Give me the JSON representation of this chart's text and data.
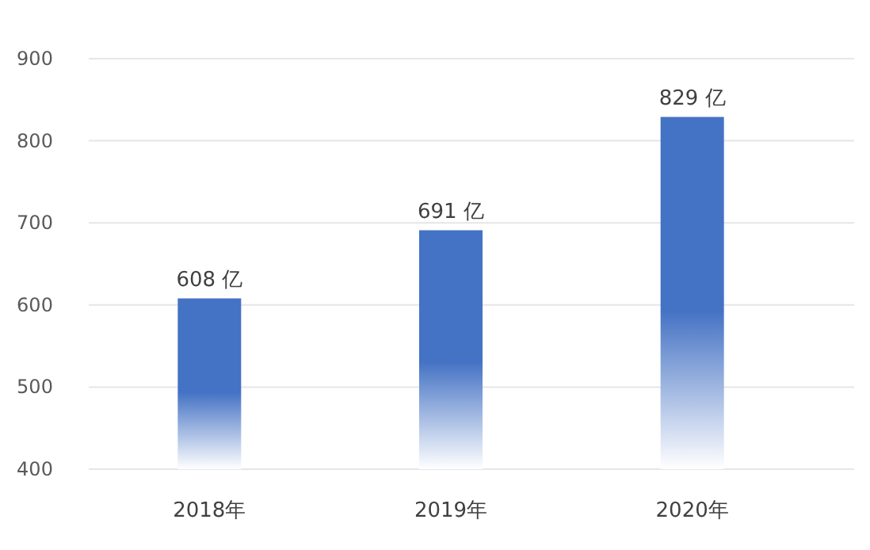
{
  "chart_data": {
    "type": "bar",
    "categories": [
      "2018年",
      "2019年",
      "2020年"
    ],
    "values": [
      608,
      691,
      829
    ],
    "value_labels": [
      "608 亿",
      "691 亿",
      "829 亿"
    ],
    "color": "#4472c4",
    "ylim": [
      400,
      900
    ],
    "yticks": [
      400,
      500,
      600,
      700,
      800,
      900
    ],
    "grid": "y"
  }
}
